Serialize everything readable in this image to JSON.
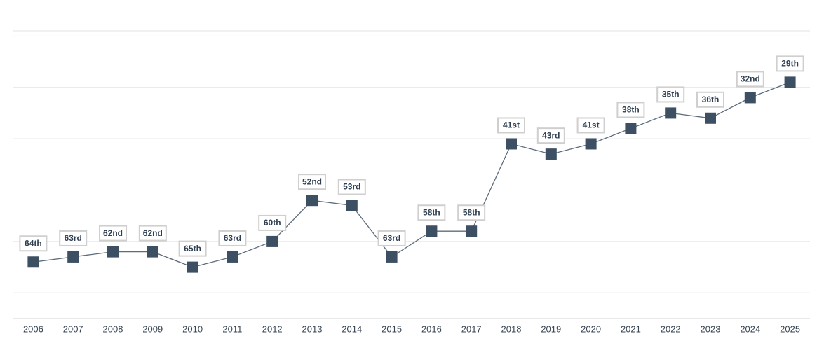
{
  "chart_data": {
    "type": "line",
    "categories": [
      "2006",
      "2007",
      "2008",
      "2009",
      "2010",
      "2011",
      "2012",
      "2013",
      "2014",
      "2015",
      "2016",
      "2017",
      "2018",
      "2019",
      "2020",
      "2021",
      "2022",
      "2023",
      "2024",
      "2025"
    ],
    "values": [
      64,
      63,
      62,
      62,
      65,
      63,
      60,
      52,
      53,
      63,
      58,
      58,
      41,
      43,
      41,
      38,
      35,
      36,
      32,
      29
    ],
    "value_labels": [
      "64th",
      "63rd",
      "62nd",
      "62nd",
      "65th",
      "63rd",
      "60th",
      "52nd",
      "53rd",
      "63rd",
      "58th",
      "58th",
      "41st",
      "43rd",
      "41st",
      "38th",
      "35th",
      "36th",
      "32nd",
      "29th"
    ],
    "color": "#3d4f62",
    "ylim": [
      75,
      19
    ],
    "yticks": [
      70,
      60,
      50,
      40,
      30,
      20
    ],
    "grid": true
  }
}
